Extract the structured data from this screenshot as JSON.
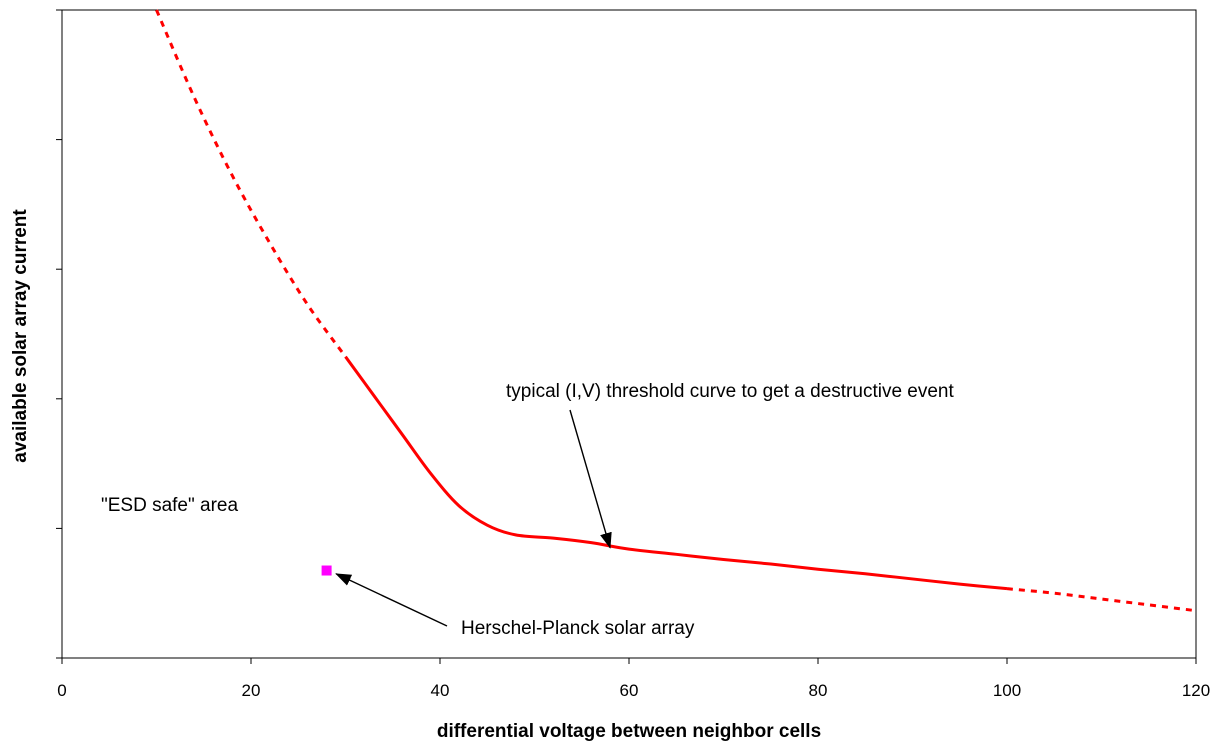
{
  "chart_data": {
    "type": "line",
    "title": "",
    "xlabel": "differential voltage between neighbor cells",
    "ylabel": "available solar array current",
    "xlim": [
      0,
      120
    ],
    "ylim": [
      0,
      1
    ],
    "x_ticks": [
      0,
      20,
      40,
      60,
      80,
      100,
      120
    ],
    "y_tick_count": 5,
    "y_tick_labels_shown": false,
    "grid": false,
    "legend": "none",
    "series": [
      {
        "style": "dotted",
        "color": "#ff0000",
        "points": [
          [
            10,
            1.0
          ],
          [
            14,
            0.865
          ],
          [
            18,
            0.745
          ],
          [
            22,
            0.64
          ],
          [
            26,
            0.545
          ],
          [
            30,
            0.465
          ]
        ]
      },
      {
        "style": "solid",
        "color": "#ff0000",
        "points": [
          [
            30,
            0.465
          ],
          [
            33,
            0.405
          ],
          [
            36,
            0.345
          ],
          [
            39,
            0.285
          ],
          [
            42,
            0.235
          ],
          [
            45,
            0.205
          ],
          [
            48,
            0.19
          ],
          [
            52,
            0.185
          ],
          [
            56,
            0.178
          ],
          [
            60,
            0.168
          ],
          [
            65,
            0.16
          ],
          [
            70,
            0.152
          ],
          [
            75,
            0.145
          ],
          [
            80,
            0.137
          ],
          [
            85,
            0.13
          ],
          [
            90,
            0.122
          ],
          [
            95,
            0.114
          ],
          [
            100,
            0.107
          ]
        ]
      },
      {
        "style": "dotted",
        "color": "#ff0000",
        "points": [
          [
            100,
            0.107
          ],
          [
            105,
            0.1
          ],
          [
            110,
            0.091
          ],
          [
            115,
            0.082
          ],
          [
            120,
            0.073
          ]
        ]
      }
    ],
    "point_markers": [
      {
        "label": "Herschel-Planck solar array",
        "x": 28,
        "y": 0.135,
        "color": "#ff00ff"
      }
    ],
    "annotations": [
      {
        "text": "typical (I,V) threshold curve to get a destructive event",
        "target": [
          58,
          0.17
        ]
      },
      {
        "text": "Herschel-Planck solar array",
        "target": [
          29,
          0.13
        ]
      },
      {
        "text": "\"ESD safe\" area"
      }
    ]
  }
}
